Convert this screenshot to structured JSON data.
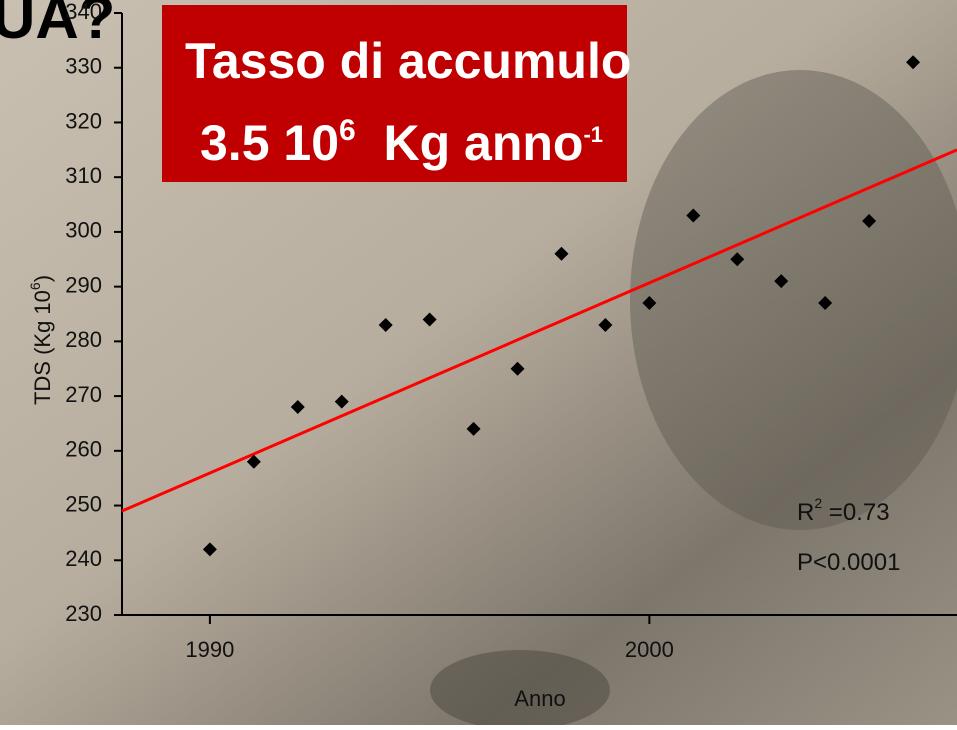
{
  "header_fragment": "UA?",
  "chart_data": {
    "type": "scatter",
    "title_box": {
      "line1": "Tasso di accumulo",
      "line2": {
        "base": "3.5 10",
        "sup": "6",
        "unit": "  Kg anno",
        "unit_sup": "-1"
      }
    },
    "x": [
      1990,
      1991,
      1992,
      1993,
      1994,
      1995,
      1996,
      1997,
      1998,
      1999,
      2000,
      2001,
      2002,
      2003,
      2004,
      2005,
      2006
    ],
    "values": [
      242,
      258,
      268,
      269,
      283,
      284,
      264,
      275,
      296,
      283,
      287,
      303,
      295,
      291,
      287,
      302,
      331
    ],
    "color": "#000000",
    "xlim": [
      1988,
      2007
    ],
    "ylim": [
      230,
      340
    ],
    "xticks": [
      1990,
      2000
    ],
    "yticks": [
      230,
      240,
      250,
      260,
      270,
      280,
      290,
      300,
      310,
      320,
      330,
      340
    ],
    "xlabel": "Anno",
    "ylabel": {
      "text": "TDS (Kg 10",
      "sup": "6",
      "end": ")"
    },
    "trendline": {
      "x": [
        1988,
        2007
      ],
      "values": [
        249,
        315
      ],
      "color": "#ff0000"
    },
    "annotations": {
      "r2": {
        "text": "R",
        "sup": "2",
        "value": " =0.73"
      },
      "p": "P<0.0001"
    }
  }
}
